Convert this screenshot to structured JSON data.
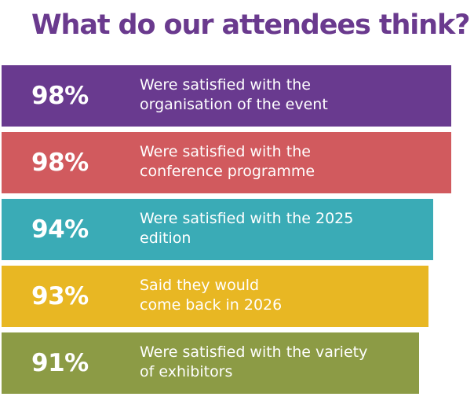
{
  "title": "What do our attendees think? *",
  "colors": {
    "title": "#6a3a8e",
    "text_on_bar": "#ffffff"
  },
  "chart_data": {
    "type": "bar",
    "orientation": "horizontal",
    "title": "What do our attendees think? *",
    "xlabel": "",
    "ylabel": "",
    "unit": "%",
    "xlim": [
      0,
      100
    ],
    "categories": [
      "Were satisfied with the organisation of the event",
      "Were satisfied with the conference programme",
      "Were satisfied with the 2025 edition",
      "Said they would come back in 2026",
      "Were satisfied with the variety of exhibitors"
    ],
    "values": [
      98,
      98,
      94,
      93,
      91
    ],
    "bars": [
      {
        "value": 98,
        "label": "98%",
        "lines": [
          "Were satisfied with the",
          "organisation of the event"
        ],
        "color": "#693a8f"
      },
      {
        "value": 98,
        "label": "98%",
        "lines": [
          "Were satisfied with the",
          "conference programme"
        ],
        "color": "#d15a5e"
      },
      {
        "value": 94,
        "label": "94%",
        "lines": [
          "Were satisfied with the 2025",
          "edition"
        ],
        "color": "#3aabb6"
      },
      {
        "value": 93,
        "label": "93%",
        "lines": [
          "Said they would",
          "come back in 2026"
        ],
        "color": "#e8b723"
      },
      {
        "value": 91,
        "label": "91%",
        "lines": [
          "Were satisfied with the variety",
          "of exhibitors"
        ],
        "color": "#8c9b45"
      }
    ]
  }
}
